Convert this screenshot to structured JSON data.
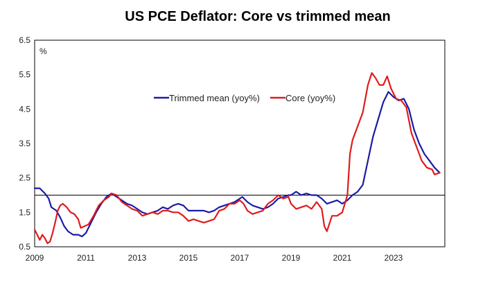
{
  "chart_data": {
    "type": "line",
    "title": "US PCE Deflator: Core vs trimmed mean",
    "unit_label": "%",
    "xlim": [
      2009.0,
      2025.0
    ],
    "ylim": [
      0.5,
      6.5
    ],
    "x_ticks": [
      2009,
      2011,
      2013,
      2015,
      2017,
      2019,
      2021,
      2023
    ],
    "y_ticks": [
      "0.5",
      "1.5",
      "2.5",
      "3.5",
      "4.5",
      "5.5",
      "6.5"
    ],
    "reference_line": 2.0,
    "grid": false,
    "legend_position": "top-center",
    "series": [
      {
        "name": "Trimmed mean (yoy%)",
        "color": "#1a1aa8",
        "points": [
          [
            2009.0,
            2.2
          ],
          [
            2009.2,
            2.2
          ],
          [
            2009.4,
            2.05
          ],
          [
            2009.55,
            1.9
          ],
          [
            2009.65,
            1.65
          ],
          [
            2009.85,
            1.55
          ],
          [
            2010.0,
            1.35
          ],
          [
            2010.15,
            1.1
          ],
          [
            2010.3,
            0.95
          ],
          [
            2010.5,
            0.85
          ],
          [
            2010.7,
            0.85
          ],
          [
            2010.85,
            0.8
          ],
          [
            2011.0,
            0.9
          ],
          [
            2011.2,
            1.2
          ],
          [
            2011.4,
            1.5
          ],
          [
            2011.6,
            1.75
          ],
          [
            2011.8,
            1.95
          ],
          [
            2012.0,
            2.05
          ],
          [
            2012.2,
            1.95
          ],
          [
            2012.4,
            1.85
          ],
          [
            2012.6,
            1.75
          ],
          [
            2012.8,
            1.7
          ],
          [
            2013.0,
            1.6
          ],
          [
            2013.2,
            1.5
          ],
          [
            2013.4,
            1.45
          ],
          [
            2013.6,
            1.5
          ],
          [
            2013.8,
            1.55
          ],
          [
            2014.0,
            1.65
          ],
          [
            2014.2,
            1.6
          ],
          [
            2014.4,
            1.7
          ],
          [
            2014.6,
            1.75
          ],
          [
            2014.8,
            1.7
          ],
          [
            2015.0,
            1.55
          ],
          [
            2015.2,
            1.55
          ],
          [
            2015.4,
            1.55
          ],
          [
            2015.6,
            1.55
          ],
          [
            2015.8,
            1.5
          ],
          [
            2016.0,
            1.55
          ],
          [
            2016.2,
            1.65
          ],
          [
            2016.4,
            1.7
          ],
          [
            2016.6,
            1.75
          ],
          [
            2016.8,
            1.8
          ],
          [
            2017.0,
            1.9
          ],
          [
            2017.1,
            1.95
          ],
          [
            2017.3,
            1.8
          ],
          [
            2017.5,
            1.7
          ],
          [
            2017.7,
            1.65
          ],
          [
            2017.9,
            1.6
          ],
          [
            2018.1,
            1.65
          ],
          [
            2018.3,
            1.75
          ],
          [
            2018.5,
            1.9
          ],
          [
            2018.7,
            1.95
          ],
          [
            2018.9,
            2.0
          ],
          [
            2019.0,
            2.0
          ],
          [
            2019.2,
            2.1
          ],
          [
            2019.4,
            2.0
          ],
          [
            2019.6,
            2.05
          ],
          [
            2019.8,
            2.0
          ],
          [
            2020.0,
            2.0
          ],
          [
            2020.2,
            1.9
          ],
          [
            2020.4,
            1.75
          ],
          [
            2020.6,
            1.8
          ],
          [
            2020.8,
            1.85
          ],
          [
            2021.0,
            1.75
          ],
          [
            2021.2,
            1.85
          ],
          [
            2021.4,
            2.0
          ],
          [
            2021.6,
            2.1
          ],
          [
            2021.8,
            2.3
          ],
          [
            2022.0,
            3.0
          ],
          [
            2022.2,
            3.7
          ],
          [
            2022.4,
            4.2
          ],
          [
            2022.6,
            4.7
          ],
          [
            2022.8,
            5.0
          ],
          [
            2023.0,
            4.85
          ],
          [
            2023.2,
            4.75
          ],
          [
            2023.4,
            4.8
          ],
          [
            2023.6,
            4.5
          ],
          [
            2023.8,
            3.9
          ],
          [
            2024.0,
            3.5
          ],
          [
            2024.2,
            3.2
          ],
          [
            2024.4,
            3.0
          ],
          [
            2024.6,
            2.8
          ],
          [
            2024.8,
            2.65
          ]
        ]
      },
      {
        "name": "Core (yoy%)",
        "color": "#e01b1b",
        "points": [
          [
            2009.0,
            1.0
          ],
          [
            2009.1,
            0.85
          ],
          [
            2009.2,
            0.7
          ],
          [
            2009.3,
            0.85
          ],
          [
            2009.4,
            0.75
          ],
          [
            2009.5,
            0.6
          ],
          [
            2009.6,
            0.65
          ],
          [
            2009.7,
            0.9
          ],
          [
            2009.8,
            1.2
          ],
          [
            2009.9,
            1.55
          ],
          [
            2010.0,
            1.7
          ],
          [
            2010.1,
            1.75
          ],
          [
            2010.25,
            1.65
          ],
          [
            2010.4,
            1.5
          ],
          [
            2010.55,
            1.45
          ],
          [
            2010.7,
            1.3
          ],
          [
            2010.8,
            1.05
          ],
          [
            2010.95,
            1.1
          ],
          [
            2011.1,
            1.15
          ],
          [
            2011.3,
            1.4
          ],
          [
            2011.5,
            1.7
          ],
          [
            2011.7,
            1.85
          ],
          [
            2011.9,
            1.95
          ],
          [
            2012.0,
            2.05
          ],
          [
            2012.2,
            2.0
          ],
          [
            2012.4,
            1.8
          ],
          [
            2012.6,
            1.7
          ],
          [
            2012.8,
            1.6
          ],
          [
            2013.0,
            1.55
          ],
          [
            2013.2,
            1.4
          ],
          [
            2013.4,
            1.45
          ],
          [
            2013.6,
            1.5
          ],
          [
            2013.8,
            1.45
          ],
          [
            2014.0,
            1.55
          ],
          [
            2014.2,
            1.55
          ],
          [
            2014.4,
            1.5
          ],
          [
            2014.6,
            1.5
          ],
          [
            2014.8,
            1.4
          ],
          [
            2015.0,
            1.25
          ],
          [
            2015.2,
            1.3
          ],
          [
            2015.4,
            1.25
          ],
          [
            2015.6,
            1.2
          ],
          [
            2015.8,
            1.25
          ],
          [
            2016.0,
            1.3
          ],
          [
            2016.2,
            1.55
          ],
          [
            2016.4,
            1.6
          ],
          [
            2016.6,
            1.75
          ],
          [
            2016.8,
            1.75
          ],
          [
            2017.0,
            1.85
          ],
          [
            2017.15,
            1.75
          ],
          [
            2017.3,
            1.55
          ],
          [
            2017.5,
            1.45
          ],
          [
            2017.7,
            1.5
          ],
          [
            2017.9,
            1.55
          ],
          [
            2018.1,
            1.75
          ],
          [
            2018.3,
            1.85
          ],
          [
            2018.5,
            2.0
          ],
          [
            2018.7,
            1.9
          ],
          [
            2018.9,
            1.95
          ],
          [
            2019.0,
            1.75
          ],
          [
            2019.2,
            1.6
          ],
          [
            2019.4,
            1.65
          ],
          [
            2019.6,
            1.7
          ],
          [
            2019.8,
            1.6
          ],
          [
            2020.0,
            1.8
          ],
          [
            2020.2,
            1.6
          ],
          [
            2020.3,
            1.1
          ],
          [
            2020.4,
            0.95
          ],
          [
            2020.6,
            1.4
          ],
          [
            2020.8,
            1.4
          ],
          [
            2021.0,
            1.5
          ],
          [
            2021.2,
            2.0
          ],
          [
            2021.3,
            3.2
          ],
          [
            2021.4,
            3.6
          ],
          [
            2021.6,
            4.0
          ],
          [
            2021.8,
            4.4
          ],
          [
            2022.0,
            5.2
          ],
          [
            2022.15,
            5.55
          ],
          [
            2022.3,
            5.4
          ],
          [
            2022.45,
            5.2
          ],
          [
            2022.6,
            5.2
          ],
          [
            2022.75,
            5.45
          ],
          [
            2022.9,
            5.1
          ],
          [
            2023.1,
            4.8
          ],
          [
            2023.3,
            4.75
          ],
          [
            2023.5,
            4.55
          ],
          [
            2023.7,
            3.8
          ],
          [
            2023.9,
            3.4
          ],
          [
            2024.1,
            3.0
          ],
          [
            2024.3,
            2.8
          ],
          [
            2024.5,
            2.75
          ],
          [
            2024.6,
            2.6
          ],
          [
            2024.8,
            2.65
          ]
        ]
      }
    ]
  }
}
